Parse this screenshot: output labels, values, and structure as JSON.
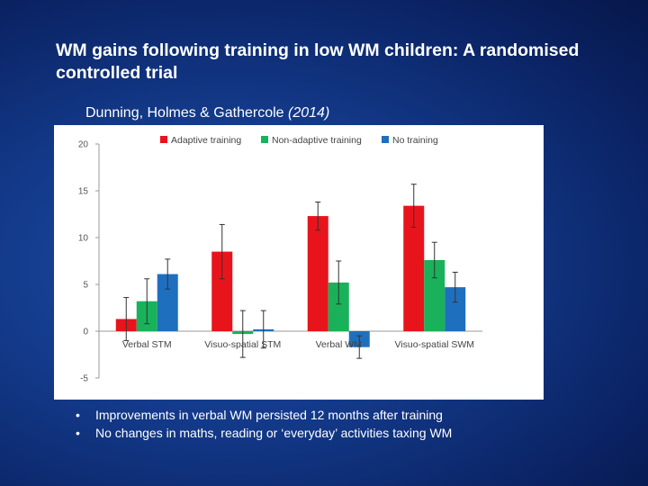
{
  "slide": {
    "title_line1": "WM gains following training in low WM children: A randomised",
    "title_line2": "controlled trial",
    "authors": "Dunning, Holmes & Gathercole",
    "year": "(2014)",
    "bullet_glyph": "•",
    "bullets": [
      "Improvements in verbal WM persisted 12 months after training",
      "No changes in maths, reading or ‘everyday’ activities taxing WM"
    ]
  },
  "chart_data": {
    "type": "bar",
    "categories": [
      "Verbal STM",
      "Visuo-spatial STM",
      "Verbal WM",
      "Visuo-spatial SWM"
    ],
    "series": [
      {
        "name": "Adaptive training",
        "color": "#e8141c",
        "values": [
          1.3,
          8.5,
          12.3,
          13.4
        ],
        "errors": [
          2.3,
          2.9,
          1.5,
          2.3
        ]
      },
      {
        "name": "Non-adaptive training",
        "color": "#19b25a",
        "values": [
          3.2,
          -0.3,
          5.2,
          7.6
        ],
        "errors": [
          2.4,
          2.5,
          2.3,
          1.9
        ]
      },
      {
        "name": "No training",
        "color": "#1f6fbf",
        "values": [
          6.1,
          0.2,
          -1.7,
          4.7
        ],
        "errors": [
          1.6,
          2.0,
          1.2,
          1.6
        ]
      }
    ],
    "ylim": [
      -5,
      20
    ],
    "yticks": [
      -5,
      0,
      5,
      10,
      15,
      20
    ],
    "legend_position": "top",
    "grid": false,
    "xlabel": "",
    "ylabel": ""
  }
}
